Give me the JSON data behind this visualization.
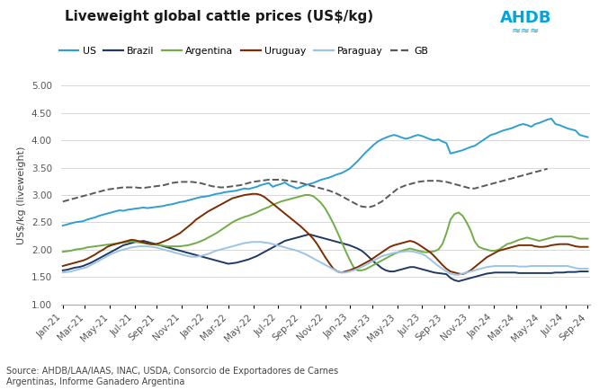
{
  "title": "Liveweight global cattle prices (US$/kg)",
  "ylabel": "US$/kg (liveweight)",
  "source": "Source: AHDB/LAA/IAAS, INAC, USDA, Consorcio de Exportadores de Carnes\nArgentinas, Informe Ganadero Argentina",
  "ylim": [
    1.0,
    5.0
  ],
  "yticks": [
    1.0,
    1.5,
    2.0,
    2.5,
    3.0,
    3.5,
    4.0,
    4.5,
    5.0
  ],
  "series": {
    "US": {
      "color": "#2E9FD0",
      "linestyle": "-",
      "linewidth": 1.4,
      "values": [
        2.44,
        2.46,
        2.48,
        2.5,
        2.51,
        2.52,
        2.55,
        2.57,
        2.59,
        2.62,
        2.64,
        2.66,
        2.68,
        2.7,
        2.72,
        2.71,
        2.73,
        2.74,
        2.75,
        2.76,
        2.77,
        2.76,
        2.77,
        2.78,
        2.79,
        2.8,
        2.82,
        2.83,
        2.85,
        2.87,
        2.88,
        2.9,
        2.92,
        2.94,
        2.96,
        2.97,
        2.98,
        3.0,
        3.02,
        3.03,
        3.05,
        3.06,
        3.07,
        3.08,
        3.1,
        3.12,
        3.11,
        3.13,
        3.15,
        3.18,
        3.2,
        3.22,
        3.15,
        3.18,
        3.2,
        3.23,
        3.18,
        3.15,
        3.12,
        3.15,
        3.18,
        3.2,
        3.22,
        3.25,
        3.28,
        3.3,
        3.32,
        3.35,
        3.38,
        3.4,
        3.44,
        3.48,
        3.55,
        3.62,
        3.7,
        3.78,
        3.85,
        3.92,
        3.98,
        4.02,
        4.05,
        4.08,
        4.1,
        4.08,
        4.05,
        4.03,
        4.05,
        4.08,
        4.1,
        4.08,
        4.05,
        4.02,
        4.0,
        4.02,
        3.98,
        3.95,
        3.76,
        3.78,
        3.8,
        3.82,
        3.85,
        3.88,
        3.9,
        3.95,
        4.0,
        4.05,
        4.1,
        4.12,
        4.15,
        4.18,
        4.2,
        4.22,
        4.25,
        4.28,
        4.3,
        4.28,
        4.25,
        4.3,
        4.32,
        4.35,
        4.38,
        4.4,
        4.3,
        4.28,
        4.25,
        4.22,
        4.2,
        4.18,
        4.1,
        4.08,
        4.06
      ]
    },
    "Brazil": {
      "color": "#1F3864",
      "linestyle": "-",
      "linewidth": 1.4,
      "values": [
        1.62,
        1.63,
        1.65,
        1.67,
        1.68,
        1.7,
        1.73,
        1.76,
        1.8,
        1.84,
        1.88,
        1.92,
        1.96,
        2.0,
        2.04,
        2.08,
        2.1,
        2.12,
        2.14,
        2.15,
        2.16,
        2.14,
        2.12,
        2.1,
        2.08,
        2.06,
        2.04,
        2.02,
        2.0,
        1.98,
        1.96,
        1.94,
        1.92,
        1.9,
        1.88,
        1.86,
        1.84,
        1.82,
        1.8,
        1.78,
        1.76,
        1.74,
        1.75,
        1.76,
        1.78,
        1.8,
        1.82,
        1.85,
        1.88,
        1.92,
        1.96,
        2.0,
        2.04,
        2.08,
        2.12,
        2.16,
        2.18,
        2.2,
        2.22,
        2.24,
        2.26,
        2.28,
        2.26,
        2.24,
        2.22,
        2.2,
        2.18,
        2.16,
        2.14,
        2.12,
        2.1,
        2.08,
        2.05,
        2.02,
        1.98,
        1.92,
        1.85,
        1.78,
        1.72,
        1.66,
        1.62,
        1.6,
        1.6,
        1.62,
        1.64,
        1.66,
        1.68,
        1.68,
        1.66,
        1.64,
        1.62,
        1.6,
        1.58,
        1.57,
        1.56,
        1.55,
        1.48,
        1.44,
        1.42,
        1.44,
        1.46,
        1.48,
        1.5,
        1.52,
        1.54,
        1.56,
        1.57,
        1.58,
        1.58,
        1.58,
        1.58,
        1.58,
        1.58,
        1.57,
        1.57,
        1.57,
        1.57,
        1.57,
        1.57,
        1.57,
        1.57,
        1.57,
        1.58,
        1.58,
        1.58,
        1.59,
        1.59,
        1.59,
        1.6,
        1.6,
        1.6
      ]
    },
    "Argentina": {
      "color": "#70AD47",
      "linestyle": "-",
      "linewidth": 1.4,
      "values": [
        1.96,
        1.97,
        1.98,
        2.0,
        2.01,
        2.02,
        2.04,
        2.05,
        2.06,
        2.07,
        2.08,
        2.09,
        2.1,
        2.11,
        2.12,
        2.13,
        2.14,
        2.15,
        2.14,
        2.13,
        2.12,
        2.11,
        2.1,
        2.09,
        2.08,
        2.07,
        2.06,
        2.06,
        2.06,
        2.06,
        2.07,
        2.08,
        2.1,
        2.12,
        2.15,
        2.18,
        2.22,
        2.26,
        2.3,
        2.35,
        2.4,
        2.45,
        2.5,
        2.54,
        2.57,
        2.6,
        2.62,
        2.65,
        2.68,
        2.72,
        2.75,
        2.78,
        2.82,
        2.85,
        2.88,
        2.9,
        2.92,
        2.94,
        2.96,
        2.98,
        3.0,
        3.0,
        2.98,
        2.92,
        2.85,
        2.75,
        2.62,
        2.48,
        2.32,
        2.15,
        1.98,
        1.82,
        1.68,
        1.62,
        1.62,
        1.64,
        1.68,
        1.72,
        1.76,
        1.8,
        1.84,
        1.88,
        1.92,
        1.95,
        1.98,
        2.0,
        2.02,
        2.0,
        1.98,
        1.96,
        1.95,
        1.96,
        1.97,
        2.0,
        2.1,
        2.3,
        2.55,
        2.65,
        2.68,
        2.62,
        2.5,
        2.35,
        2.15,
        2.05,
        2.02,
        2.0,
        1.98,
        1.98,
        2.0,
        2.05,
        2.1,
        2.12,
        2.15,
        2.18,
        2.2,
        2.22,
        2.2,
        2.18,
        2.16,
        2.18,
        2.2,
        2.22,
        2.24,
        2.24,
        2.24,
        2.24,
        2.24,
        2.22,
        2.2,
        2.2,
        2.2
      ]
    },
    "Uruguay": {
      "color": "#7B2C00",
      "linestyle": "-",
      "linewidth": 1.4,
      "values": [
        1.7,
        1.72,
        1.74,
        1.76,
        1.78,
        1.8,
        1.83,
        1.87,
        1.91,
        1.96,
        2.0,
        2.05,
        2.08,
        2.1,
        2.12,
        2.14,
        2.16,
        2.18,
        2.17,
        2.15,
        2.13,
        2.11,
        2.1,
        2.1,
        2.12,
        2.15,
        2.18,
        2.22,
        2.26,
        2.3,
        2.36,
        2.42,
        2.48,
        2.55,
        2.6,
        2.65,
        2.7,
        2.74,
        2.78,
        2.82,
        2.86,
        2.9,
        2.94,
        2.96,
        2.98,
        3.0,
        3.01,
        3.02,
        3.02,
        3.0,
        2.96,
        2.9,
        2.84,
        2.78,
        2.72,
        2.66,
        2.6,
        2.54,
        2.48,
        2.42,
        2.35,
        2.28,
        2.2,
        2.1,
        1.98,
        1.86,
        1.75,
        1.65,
        1.6,
        1.58,
        1.6,
        1.62,
        1.65,
        1.68,
        1.72,
        1.76,
        1.8,
        1.85,
        1.9,
        1.95,
        2.0,
        2.05,
        2.08,
        2.1,
        2.12,
        2.14,
        2.16,
        2.14,
        2.1,
        2.05,
        2.0,
        1.95,
        1.88,
        1.8,
        1.72,
        1.65,
        1.6,
        1.58,
        1.56,
        1.55,
        1.58,
        1.62,
        1.68,
        1.74,
        1.8,
        1.86,
        1.9,
        1.94,
        1.98,
        2.0,
        2.02,
        2.04,
        2.06,
        2.08,
        2.08,
        2.08,
        2.08,
        2.06,
        2.05,
        2.05,
        2.06,
        2.08,
        2.09,
        2.1,
        2.1,
        2.1,
        2.08,
        2.06,
        2.05,
        2.05,
        2.05
      ]
    },
    "Paraguay": {
      "color": "#9DC3E6",
      "linestyle": "-",
      "linewidth": 1.4,
      "values": [
        1.58,
        1.59,
        1.6,
        1.62,
        1.64,
        1.66,
        1.68,
        1.72,
        1.76,
        1.8,
        1.84,
        1.88,
        1.92,
        1.95,
        1.98,
        2.0,
        2.02,
        2.04,
        2.05,
        2.06,
        2.06,
        2.06,
        2.05,
        2.04,
        2.02,
        2.0,
        1.98,
        1.96,
        1.94,
        1.92,
        1.9,
        1.88,
        1.87,
        1.87,
        1.88,
        1.9,
        1.92,
        1.95,
        1.98,
        2.0,
        2.02,
        2.04,
        2.06,
        2.08,
        2.1,
        2.12,
        2.13,
        2.14,
        2.14,
        2.14,
        2.13,
        2.12,
        2.1,
        2.08,
        2.06,
        2.04,
        2.02,
        2.0,
        1.98,
        1.95,
        1.92,
        1.88,
        1.84,
        1.8,
        1.76,
        1.72,
        1.68,
        1.64,
        1.6,
        1.58,
        1.58,
        1.6,
        1.62,
        1.65,
        1.68,
        1.72,
        1.76,
        1.8,
        1.84,
        1.88,
        1.9,
        1.92,
        1.94,
        1.95,
        1.96,
        1.97,
        1.97,
        1.96,
        1.94,
        1.92,
        1.88,
        1.82,
        1.76,
        1.7,
        1.65,
        1.6,
        1.56,
        1.54,
        1.54,
        1.56,
        1.58,
        1.6,
        1.62,
        1.64,
        1.66,
        1.68,
        1.69,
        1.7,
        1.7,
        1.7,
        1.7,
        1.7,
        1.7,
        1.69,
        1.69,
        1.69,
        1.7,
        1.7,
        1.7,
        1.7,
        1.7,
        1.7,
        1.7,
        1.7,
        1.7,
        1.7,
        1.68,
        1.66,
        1.65,
        1.65,
        1.65
      ]
    },
    "GB": {
      "color": "#595959",
      "linestyle": "--",
      "linewidth": 1.4,
      "values": [
        2.88,
        2.9,
        2.92,
        2.94,
        2.96,
        2.98,
        3.0,
        3.02,
        3.04,
        3.06,
        3.08,
        3.1,
        3.11,
        3.12,
        3.13,
        3.14,
        3.14,
        3.14,
        3.14,
        3.13,
        3.13,
        3.14,
        3.15,
        3.16,
        3.17,
        3.18,
        3.2,
        3.22,
        3.23,
        3.24,
        3.24,
        3.24,
        3.24,
        3.23,
        3.22,
        3.2,
        3.18,
        3.16,
        3.15,
        3.14,
        3.14,
        3.15,
        3.16,
        3.17,
        3.18,
        3.2,
        3.22,
        3.24,
        3.25,
        3.26,
        3.27,
        3.28,
        3.28,
        3.28,
        3.28,
        3.27,
        3.26,
        3.25,
        3.24,
        3.22,
        3.2,
        3.18,
        3.16,
        3.14,
        3.12,
        3.1,
        3.08,
        3.05,
        3.02,
        2.98,
        2.94,
        2.9,
        2.86,
        2.82,
        2.79,
        2.78,
        2.78,
        2.8,
        2.84,
        2.88,
        2.94,
        3.0,
        3.06,
        3.12,
        3.15,
        3.18,
        3.2,
        3.22,
        3.24,
        3.25,
        3.26,
        3.26,
        3.26,
        3.26,
        3.25,
        3.24,
        3.22,
        3.2,
        3.18,
        3.16,
        3.14,
        3.12,
        3.12,
        3.14,
        3.16,
        3.18,
        3.2,
        3.22,
        3.24,
        3.26,
        3.28,
        3.3,
        3.32,
        3.34,
        3.36,
        3.38,
        3.4,
        3.42,
        3.44,
        3.46,
        3.48,
        null,
        null,
        null,
        null,
        null,
        null,
        null,
        null,
        null,
        null
      ]
    }
  },
  "x_tick_labels": [
    "Jan-21",
    "Mar-21",
    "May-21",
    "Jul-21",
    "Sep-21",
    "Nov-21",
    "Jan-22",
    "Mar-22",
    "May-22",
    "Jul-22",
    "Sep-22",
    "Nov-22",
    "Jan-23",
    "Mar-23",
    "May-23",
    "Jul-23",
    "Sep-23",
    "Nov-23",
    "Jan-24",
    "Mar-24",
    "May-24",
    "Jul-24",
    "Sep-24"
  ],
  "n_points": 131,
  "x_tick_positions_frac": [
    0,
    8,
    17,
    26,
    34,
    43,
    52,
    60,
    69,
    78,
    86,
    95,
    104,
    112,
    121,
    130,
    138,
    147,
    156,
    164,
    173,
    182,
    190
  ],
  "background_color": "#ffffff",
  "grid_color": "#d8d8d8",
  "spine_color": "#aaaaaa",
  "ahdb_color": "#00A5D9",
  "title_fontsize": 11,
  "axis_fontsize": 8,
  "tick_fontsize": 7.5,
  "source_fontsize": 7
}
